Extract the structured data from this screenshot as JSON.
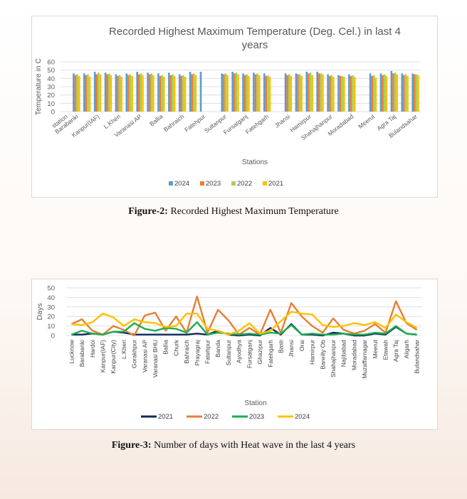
{
  "figure2": {
    "caption_label": "Figure-2:",
    "caption_text": "Recorded Highest Maximum Temperature"
  },
  "figure3": {
    "caption_label": "Figure-3:",
    "caption_text": "Number of days with Heat wave in the last 4 years"
  },
  "chart_data": [
    {
      "type": "bar",
      "title": "Recorded Highest Maximum Temperature (Deg. Cel.) in last 4 years",
      "xlabel": "Stations",
      "ylabel": "Temperature in  C",
      "ylim": [
        0,
        60
      ],
      "yticks": [
        0,
        10,
        20,
        30,
        40,
        50,
        60
      ],
      "grid": true,
      "legend_position": "bottom",
      "categories": [
        "station",
        "Barabanki",
        "",
        "Kanpur(IAF)",
        "",
        "L.Kheri",
        "",
        "Varanasi AP",
        "",
        "Ballia",
        "",
        "Bahraich",
        "",
        "Fatehpur",
        "",
        "Sultanpur",
        "",
        "Fursatganj",
        "",
        "Fatehgarh",
        "",
        "Jhansi",
        "",
        "Hamirpur",
        "",
        "Shahajhanpur",
        "",
        "Moradabad",
        "",
        "Meerut",
        "",
        "Agra Taj",
        "",
        "Bulandsahar"
      ],
      "series": [
        {
          "name": "2024",
          "color": "#5b9bd5",
          "values": [
            null,
            46,
            46,
            48,
            47,
            45,
            46,
            48,
            47,
            46,
            47,
            45,
            48,
            48,
            null,
            46,
            48,
            46,
            47,
            46,
            null,
            46,
            46,
            48,
            48,
            45,
            44,
            45,
            null,
            46,
            46,
            49,
            46,
            46
          ]
        },
        {
          "name": "2023",
          "color": "#ed7d31",
          "values": [
            null,
            44,
            44,
            45,
            45,
            43,
            44,
            45,
            45,
            43,
            44,
            43,
            45,
            null,
            null,
            45,
            46,
            44,
            45,
            43,
            null,
            44,
            45,
            46,
            46,
            43,
            43,
            43,
            null,
            43,
            44,
            46,
            44,
            45
          ]
        },
        {
          "name": "2022",
          "color": "#a5d05f",
          "values": [
            null,
            45,
            45,
            47,
            46,
            44,
            45,
            46,
            46,
            44,
            45,
            44,
            46,
            null,
            null,
            46,
            47,
            45,
            46,
            44,
            null,
            45,
            45,
            47,
            46,
            44,
            43,
            44,
            null,
            44,
            45,
            47,
            45,
            45
          ]
        },
        {
          "name": "2021",
          "color": "#ffc000",
          "values": [
            null,
            43,
            42,
            45,
            44,
            42,
            43,
            44,
            44,
            42,
            43,
            42,
            44,
            null,
            null,
            44,
            45,
            43,
            44,
            42,
            null,
            43,
            43,
            44,
            45,
            42,
            42,
            42,
            null,
            41,
            43,
            45,
            43,
            44
          ]
        }
      ]
    },
    {
      "type": "line",
      "title": "",
      "xlabel": "Station",
      "ylabel": "Days",
      "ylim": [
        0,
        50
      ],
      "yticks": [
        0,
        10,
        20,
        30,
        40,
        50
      ],
      "grid": true,
      "legend_position": "bottom",
      "categories": [
        "Lucknow",
        "Barabanki",
        "Hardoi",
        "Kanpur(IAF)",
        "Kanpur(City)",
        "L.Kheri",
        "Gorakhpur",
        "Varanasi AP",
        "Varanasi BHU",
        "Ballia",
        "Churk",
        "Bahraich",
        "Prayagraj",
        "Fatehpur",
        "Banda",
        "Sultanpur",
        "Ayodhya",
        "Fursatganj",
        "Ghazipur",
        "Fatehgarh",
        "Basti",
        "Jhansi",
        "Orai",
        "Hamirpur",
        "Bareilly Ob",
        "Shahajhanpur",
        "Najibabad",
        "Moradabad",
        "Muzaffarnagar",
        "Meerut",
        "Etawah",
        "Agra Taj",
        "Aligarh",
        "Bulandsahar"
      ],
      "series": [
        {
          "name": "2021",
          "color": "#0e2a5c",
          "values": [
            1,
            1,
            2,
            1,
            4,
            3,
            1,
            1,
            1,
            1,
            1,
            1,
            2,
            1,
            5,
            1,
            0,
            1,
            0,
            8,
            1,
            12,
            1,
            1,
            0,
            3,
            2,
            0,
            0,
            2,
            1,
            9,
            2,
            1
          ]
        },
        {
          "name": "2022",
          "color": "#e67e34",
          "values": [
            12,
            17,
            5,
            1,
            10,
            6,
            0,
            21,
            24,
            5,
            20,
            3,
            41,
            3,
            27,
            16,
            1,
            8,
            1,
            27,
            3,
            34,
            20,
            10,
            3,
            18,
            6,
            2,
            5,
            12,
            3,
            36,
            13,
            6
          ]
        },
        {
          "name": "2023",
          "color": "#1cae4f",
          "values": [
            1,
            5,
            2,
            1,
            4,
            4,
            13,
            7,
            5,
            8,
            7,
            3,
            14,
            1,
            3,
            2,
            1,
            2,
            1,
            3,
            2,
            11,
            1,
            2,
            1,
            1,
            2,
            1,
            1,
            3,
            2,
            10,
            2,
            1
          ]
        },
        {
          "name": "2024",
          "color": "#ffc000",
          "values": [
            12,
            11,
            14,
            23,
            19,
            10,
            17,
            14,
            13,
            9,
            10,
            23,
            23,
            7,
            5,
            1,
            5,
            13,
            2,
            5,
            15,
            25,
            23,
            22,
            11,
            9,
            10,
            13,
            11,
            14,
            8,
            22,
            14,
            8
          ]
        }
      ]
    }
  ]
}
